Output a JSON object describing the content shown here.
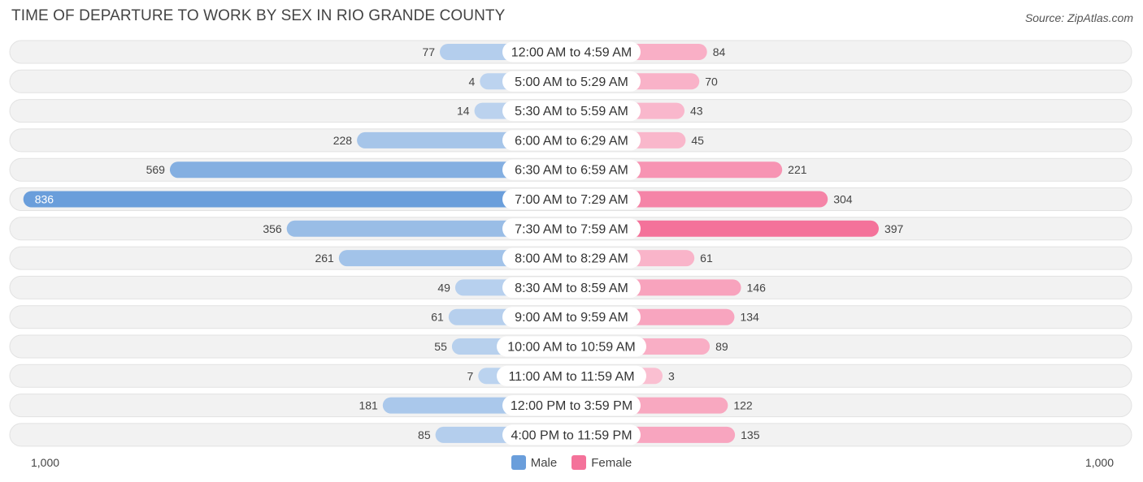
{
  "title": "TIME OF DEPARTURE TO WORK BY SEX IN RIO GRANDE COUNTY",
  "source": "Source: ZipAtlas.com",
  "axis": {
    "left_label": "1,000",
    "right_label": "1,000"
  },
  "legend": [
    {
      "name": "Male",
      "color": "#6a9edb"
    },
    {
      "name": "Female",
      "color": "#f4729a"
    }
  ],
  "chart_data": {
    "type": "bar",
    "orientation": "horizontal-diverging",
    "title": "TIME OF DEPARTURE TO WORK BY SEX IN RIO GRANDE COUNTY",
    "xlim": [
      -1000,
      1000
    ],
    "categories": [
      "12:00 AM to 4:59 AM",
      "5:00 AM to 5:29 AM",
      "5:30 AM to 5:59 AM",
      "6:00 AM to 6:29 AM",
      "6:30 AM to 6:59 AM",
      "7:00 AM to 7:29 AM",
      "7:30 AM to 7:59 AM",
      "8:00 AM to 8:29 AM",
      "8:30 AM to 8:59 AM",
      "9:00 AM to 9:59 AM",
      "10:00 AM to 10:59 AM",
      "11:00 AM to 11:59 AM",
      "12:00 PM to 3:59 PM",
      "4:00 PM to 11:59 PM"
    ],
    "series": [
      {
        "name": "Male",
        "color": "#6a9edb",
        "values": [
          77,
          4,
          14,
          228,
          569,
          836,
          356,
          261,
          49,
          61,
          55,
          7,
          181,
          85
        ]
      },
      {
        "name": "Female",
        "color": "#f4729a",
        "values": [
          84,
          70,
          43,
          45,
          221,
          304,
          397,
          61,
          146,
          134,
          89,
          3,
          122,
          135
        ]
      }
    ]
  }
}
